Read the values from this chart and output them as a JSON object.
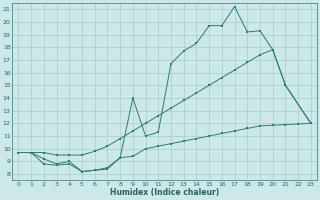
{
  "xlabel": "Humidex (Indice chaleur)",
  "bg_color": "#cce8e8",
  "grid_color": "#aacccc",
  "line_color": "#2d7a6e",
  "xlim": [
    -0.5,
    23.5
  ],
  "ylim": [
    7.5,
    21.5
  ],
  "yticks": [
    8,
    9,
    10,
    11,
    12,
    13,
    14,
    15,
    16,
    17,
    18,
    19,
    20,
    21
  ],
  "xticks": [
    0,
    1,
    2,
    3,
    4,
    5,
    6,
    7,
    8,
    9,
    10,
    11,
    12,
    13,
    14,
    15,
    16,
    17,
    18,
    19,
    20,
    21,
    22,
    23
  ],
  "line1_x": [
    0,
    1,
    2,
    3,
    4,
    5,
    6,
    7,
    8,
    9,
    10,
    11,
    12,
    13,
    14,
    15,
    16,
    17,
    18,
    19,
    20,
    21,
    23
  ],
  "line1_y": [
    9.7,
    9.7,
    8.8,
    8.7,
    8.8,
    8.2,
    8.3,
    8.4,
    9.3,
    14.0,
    11.0,
    11.3,
    16.7,
    17.7,
    18.3,
    19.7,
    19.7,
    21.2,
    19.2,
    19.3,
    17.8,
    15.0,
    12.0
  ],
  "line2_x": [
    0,
    1,
    2,
    3,
    4,
    5,
    6,
    7,
    8,
    9,
    10,
    11,
    12,
    13,
    14,
    15,
    16,
    17,
    18,
    19,
    20,
    21,
    23
  ],
  "line2_y": [
    9.7,
    9.7,
    9.7,
    9.5,
    9.5,
    9.5,
    9.8,
    10.2,
    10.8,
    11.4,
    12.0,
    12.6,
    13.2,
    13.8,
    14.4,
    15.0,
    15.6,
    16.2,
    16.8,
    17.4,
    17.8,
    15.0,
    12.0
  ],
  "line3_x": [
    0,
    1,
    2,
    3,
    4,
    5,
    6,
    7,
    8,
    9,
    10,
    11,
    12,
    13,
    14,
    15,
    16,
    17,
    18,
    19,
    20,
    21,
    22,
    23
  ],
  "line3_y": [
    9.7,
    9.7,
    9.2,
    8.8,
    9.0,
    8.2,
    8.3,
    8.5,
    9.3,
    9.4,
    10.0,
    10.2,
    10.4,
    10.6,
    10.8,
    11.0,
    11.2,
    11.4,
    11.6,
    11.8,
    11.85,
    11.9,
    11.95,
    12.0
  ]
}
